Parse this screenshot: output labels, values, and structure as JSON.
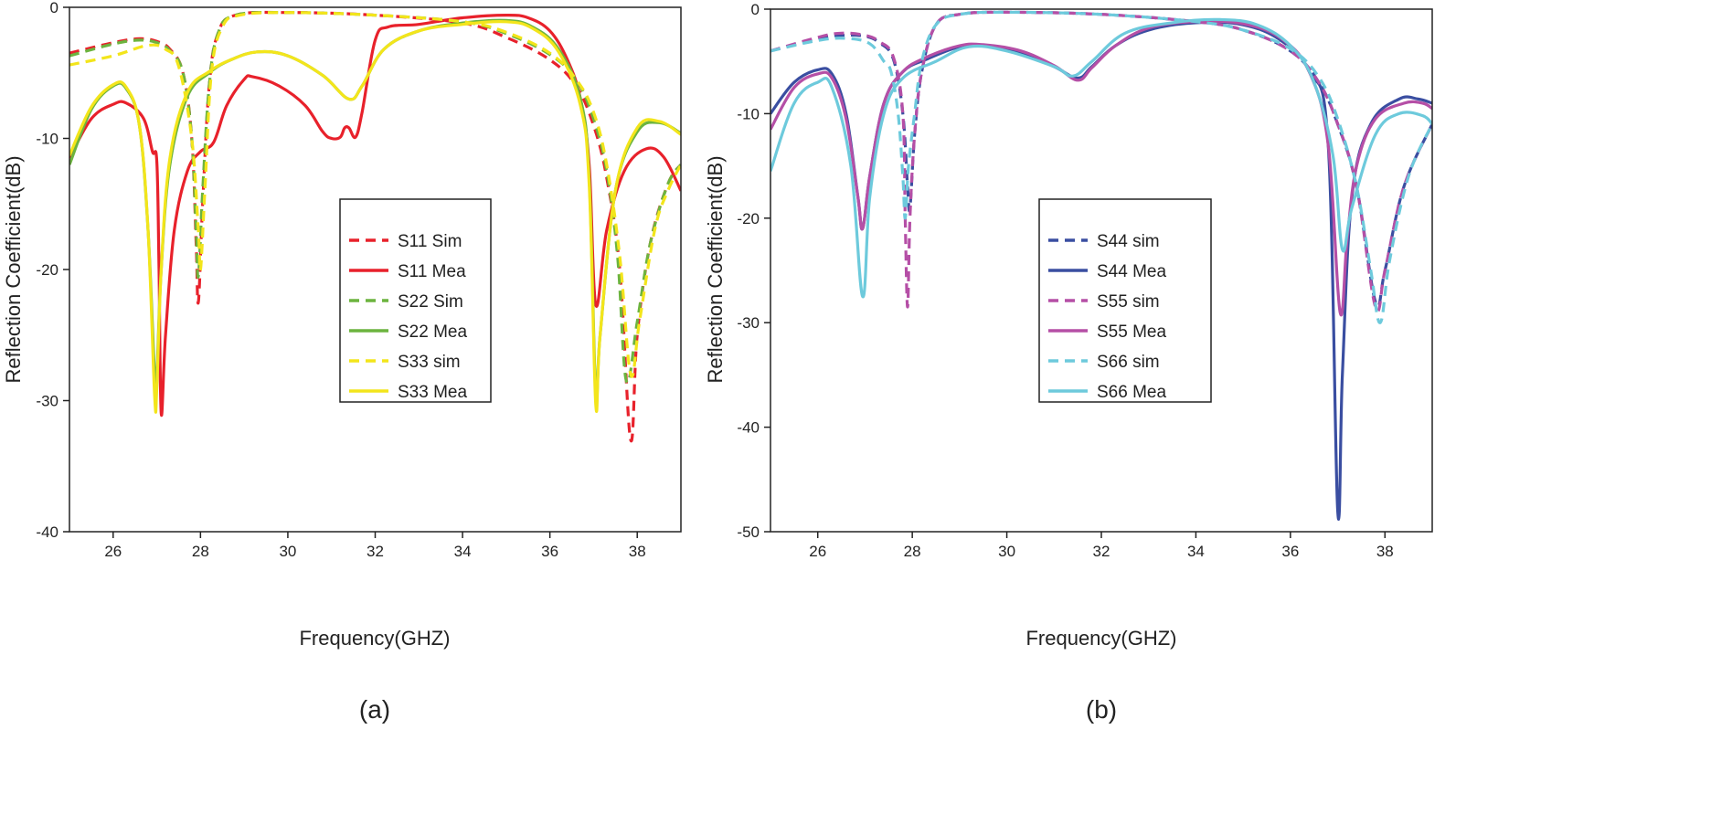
{
  "chart_data": [
    {
      "type": "line",
      "panel_label": "(a)",
      "xlabel": "Frequency(GHZ)",
      "ylabel": "Reflection Coefficient(dB)",
      "xlim": [
        25,
        39
      ],
      "ylim": [
        -40,
        0
      ],
      "xticks": [
        26,
        28,
        30,
        32,
        34,
        36,
        38
      ],
      "yticks": [
        0,
        -10,
        -20,
        -30,
        -40
      ],
      "grid": false,
      "legend_position": "center-right",
      "series": [
        {
          "name": "S11 Sim",
          "color": "#e8212b",
          "dash": true,
          "x": [
            25,
            26,
            26.6,
            27,
            27.3,
            27.6,
            27.8,
            27.9,
            27.95,
            28.05,
            28.2,
            28.4,
            28.8,
            30,
            32,
            34,
            35,
            36,
            36.6,
            37,
            37.3,
            37.6,
            37.85,
            38,
            38.3,
            38.7,
            39
          ],
          "y": [
            -3.5,
            -2.7,
            -2.4,
            -2.6,
            -3.2,
            -5,
            -10,
            -18,
            -22.5,
            -15,
            -6,
            -2,
            -0.6,
            -0.4,
            -0.6,
            -1.2,
            -2.3,
            -4,
            -6,
            -9,
            -13,
            -20,
            -33,
            -25,
            -18,
            -13.5,
            -12
          ]
        },
        {
          "name": "S11 Mea",
          "color": "#e8212b",
          "dash": false,
          "x": [
            25,
            25.5,
            26,
            26.3,
            26.7,
            26.9,
            27,
            27.05,
            27.1,
            27.2,
            27.4,
            27.7,
            28,
            28.3,
            28.6,
            29,
            29.2,
            29.8,
            30.4,
            30.8,
            31,
            31.2,
            31.3,
            31.4,
            31.55,
            31.7,
            32,
            32.3,
            33,
            34,
            35,
            35.5,
            36,
            36.4,
            36.7,
            36.9,
            37.05,
            37.3,
            37.7,
            38.2,
            38.6,
            39
          ],
          "y": [
            -11.5,
            -8.5,
            -7.4,
            -7.3,
            -8.5,
            -11,
            -11.8,
            -20,
            -31,
            -25,
            -17,
            -12.5,
            -11,
            -10.3,
            -7.5,
            -5.5,
            -5.3,
            -6,
            -7.5,
            -9.5,
            -10,
            -9.9,
            -9.2,
            -9.2,
            -9.9,
            -8,
            -2.5,
            -1.5,
            -1.3,
            -0.8,
            -0.6,
            -0.8,
            -1.8,
            -4,
            -7,
            -12,
            -22.7,
            -17,
            -12.5,
            -10.8,
            -11.4,
            -14
          ]
        },
        {
          "name": "S22 Sim",
          "color": "#6cb43f",
          "dash": true,
          "x": [
            25,
            26,
            26.6,
            27,
            27.3,
            27.6,
            27.8,
            27.9,
            27.95,
            28.05,
            28.2,
            28.4,
            28.8,
            30,
            32,
            34,
            35,
            36,
            36.6,
            37,
            37.3,
            37.55,
            37.75,
            38,
            38.3,
            38.7,
            39
          ],
          "y": [
            -3.7,
            -2.8,
            -2.5,
            -2.7,
            -3.3,
            -5,
            -10,
            -17,
            -20.5,
            -14,
            -6,
            -2,
            -0.6,
            -0.4,
            -0.6,
            -1.1,
            -2,
            -3.6,
            -5.5,
            -8.5,
            -12.5,
            -19,
            -28.5,
            -24,
            -18,
            -13.5,
            -12
          ]
        },
        {
          "name": "S22 Mea",
          "color": "#6cb43f",
          "dash": false,
          "x": [
            25,
            25.5,
            26,
            26.3,
            26.6,
            26.8,
            26.95,
            27,
            27.1,
            27.3,
            27.7,
            28.2,
            28.7,
            29.3,
            30,
            30.8,
            31.4,
            31.7,
            32.2,
            33,
            34,
            35,
            35.6,
            36.2,
            36.7,
            36.9,
            37.05,
            37.15,
            37.5,
            38,
            38.5,
            39
          ],
          "y": [
            -12,
            -7.8,
            -6,
            -6.2,
            -9,
            -17,
            -28,
            -28,
            -20,
            -12,
            -6.8,
            -5,
            -4,
            -3.4,
            -3.7,
            -5.2,
            -7,
            -6,
            -3.2,
            -1.8,
            -1.2,
            -1,
            -1.5,
            -3.2,
            -7,
            -13,
            -29.5,
            -25,
            -14,
            -9.5,
            -8.8,
            -9.6
          ]
        },
        {
          "name": "S33 sim",
          "color": "#f3e51b",
          "dash": true,
          "x": [
            25,
            26,
            26.8,
            27.2,
            27.5,
            27.8,
            27.95,
            28,
            28.1,
            28.25,
            28.5,
            28.9,
            30,
            32,
            34,
            35,
            36,
            36.6,
            37,
            37.3,
            37.6,
            37.85,
            38.05,
            38.4,
            38.7,
            39
          ],
          "y": [
            -4.4,
            -3.7,
            -2.9,
            -3.2,
            -4.5,
            -10,
            -17,
            -20,
            -14,
            -5,
            -1.5,
            -0.6,
            -0.4,
            -0.6,
            -1.1,
            -1.9,
            -3.5,
            -5.5,
            -8,
            -12,
            -19,
            -28,
            -24,
            -17,
            -14,
            -12
          ]
        },
        {
          "name": "S33 Mea",
          "color": "#f3e51b",
          "dash": false,
          "x": [
            25,
            25.5,
            26,
            26.3,
            26.6,
            26.8,
            26.95,
            27,
            27.1,
            27.3,
            27.7,
            28.2,
            28.7,
            29.3,
            30,
            30.8,
            31.4,
            31.7,
            32.2,
            33,
            34,
            35,
            35.6,
            36.2,
            36.7,
            36.9,
            37.05,
            37.15,
            37.5,
            38,
            38.5,
            39
          ],
          "y": [
            -11.3,
            -7.6,
            -5.9,
            -6.1,
            -9,
            -17,
            -29.7,
            -29,
            -20,
            -11.5,
            -6.5,
            -4.9,
            -4,
            -3.4,
            -3.7,
            -5.2,
            -7,
            -6,
            -3.2,
            -1.8,
            -1.3,
            -1.1,
            -1.6,
            -3.4,
            -7.5,
            -13.5,
            -30.3,
            -25,
            -14,
            -9.2,
            -8.7,
            -9.7
          ]
        }
      ]
    },
    {
      "type": "line",
      "panel_label": "(b)",
      "xlabel": "Frequency(GHZ)",
      "ylabel": "Reflection Coefficient(dB)",
      "xlim": [
        25,
        39
      ],
      "ylim": [
        -50,
        0
      ],
      "xticks": [
        26,
        28,
        30,
        32,
        34,
        36,
        38
      ],
      "yticks": [
        0,
        -10,
        -20,
        -30,
        -40,
        -50
      ],
      "grid": false,
      "legend_position": "center-right",
      "series": [
        {
          "name": "S44 sim",
          "color": "#3a4ea1",
          "dash": true,
          "x": [
            25,
            26,
            26.5,
            27,
            27.3,
            27.6,
            27.8,
            27.9,
            27.95,
            28.05,
            28.2,
            28.5,
            29,
            30,
            32,
            34,
            35,
            36,
            36.6,
            37,
            37.4,
            37.8,
            38,
            38.4,
            39
          ],
          "y": [
            -4,
            -2.8,
            -2.5,
            -2.6,
            -3.2,
            -4.8,
            -10,
            -17,
            -19,
            -12,
            -6,
            -1.5,
            -0.5,
            -0.3,
            -0.5,
            -1.2,
            -2,
            -4,
            -7,
            -11,
            -17,
            -28,
            -25,
            -17,
            -11
          ]
        },
        {
          "name": "S44 Mea",
          "color": "#3a4ea1",
          "dash": false,
          "x": [
            25,
            25.5,
            26,
            26.3,
            26.6,
            26.85,
            26.95,
            27.1,
            27.4,
            27.8,
            28.3,
            29,
            29.5,
            30.3,
            31,
            31.5,
            31.8,
            32.3,
            33,
            34,
            35,
            35.8,
            36.4,
            36.8,
            37,
            37.1,
            37.3,
            37.7,
            38.3,
            38.7,
            39
          ],
          "y": [
            -10,
            -7,
            -5.8,
            -6.2,
            -10,
            -18,
            -21,
            -16,
            -9,
            -6,
            -4.8,
            -3.6,
            -3.5,
            -4.2,
            -5.5,
            -6.6,
            -5.5,
            -3.5,
            -2,
            -1.3,
            -1.5,
            -3,
            -6,
            -13,
            -48,
            -35,
            -18,
            -11,
            -8.6,
            -8.6,
            -9
          ]
        },
        {
          "name": "S55 sim",
          "color": "#b54fa6",
          "dash": true,
          "x": [
            25,
            26,
            26.5,
            27,
            27.3,
            27.6,
            27.8,
            27.85,
            27.9,
            27.95,
            28.05,
            28.2,
            28.5,
            29,
            30,
            32,
            34,
            35,
            36,
            36.6,
            37,
            37.4,
            37.8,
            38,
            38.4,
            39
          ],
          "y": [
            -4,
            -2.7,
            -2.3,
            -2.5,
            -3.1,
            -4.6,
            -10,
            -20,
            -28.5,
            -20,
            -12,
            -6,
            -1.5,
            -0.5,
            -0.3,
            -0.5,
            -1.2,
            -2,
            -4,
            -7,
            -11,
            -17,
            -28.5,
            -25,
            -17,
            -11
          ]
        },
        {
          "name": "S55 Mea",
          "color": "#b54fa6",
          "dash": false,
          "x": [
            25,
            25.5,
            26,
            26.3,
            26.6,
            26.85,
            26.95,
            27.1,
            27.4,
            27.8,
            28.3,
            29,
            29.5,
            30.3,
            31,
            31.5,
            31.8,
            32.3,
            33,
            34,
            35,
            35.8,
            36.4,
            36.8,
            37.05,
            37.2,
            37.4,
            37.8,
            38.4,
            38.8,
            39
          ],
          "y": [
            -11.5,
            -7.5,
            -6.2,
            -6.6,
            -10.5,
            -18,
            -21,
            -16,
            -9,
            -6,
            -4.6,
            -3.5,
            -3.4,
            -4,
            -5.4,
            -6.8,
            -5.6,
            -3.5,
            -1.8,
            -1.2,
            -1.4,
            -2.8,
            -6,
            -13,
            -29,
            -22,
            -15,
            -10.5,
            -9,
            -9,
            -9.5
          ]
        },
        {
          "name": "S66 sim",
          "color": "#6dcadc",
          "dash": true,
          "x": [
            25,
            26,
            26.6,
            27.1,
            27.4,
            27.55,
            27.7,
            27.8,
            27.85,
            27.92,
            28.05,
            28.2,
            28.5,
            29,
            30,
            32,
            34,
            35,
            36,
            36.6,
            37,
            37.4,
            37.7,
            37.9,
            38.1,
            38.5,
            39
          ],
          "y": [
            -4,
            -3,
            -2.8,
            -3.3,
            -5,
            -6,
            -10,
            -16,
            -20,
            -15,
            -10,
            -5,
            -1.5,
            -0.5,
            -0.3,
            -0.5,
            -1.2,
            -2,
            -3.8,
            -6.5,
            -10.5,
            -17,
            -25,
            -30,
            -24,
            -16,
            -11
          ]
        },
        {
          "name": "S66 Mea",
          "color": "#6dcadc",
          "dash": false,
          "x": [
            25,
            25.5,
            26,
            26.3,
            26.7,
            26.95,
            27.1,
            27.4,
            27.8,
            28.5,
            29.2,
            30,
            31,
            31.4,
            31.8,
            32.5,
            33.5,
            34.5,
            35.3,
            36,
            36.5,
            36.9,
            37.1,
            37.3,
            37.8,
            38.3,
            38.8,
            39
          ],
          "y": [
            -15.5,
            -9,
            -7,
            -7.5,
            -15,
            -27.5,
            -18,
            -10,
            -6.6,
            -5,
            -3.6,
            -4,
            -5.5,
            -6.4,
            -5,
            -2.3,
            -1.3,
            -1,
            -1.5,
            -3.5,
            -7,
            -14,
            -23,
            -19,
            -12,
            -10,
            -10.2,
            -11
          ]
        }
      ]
    }
  ]
}
